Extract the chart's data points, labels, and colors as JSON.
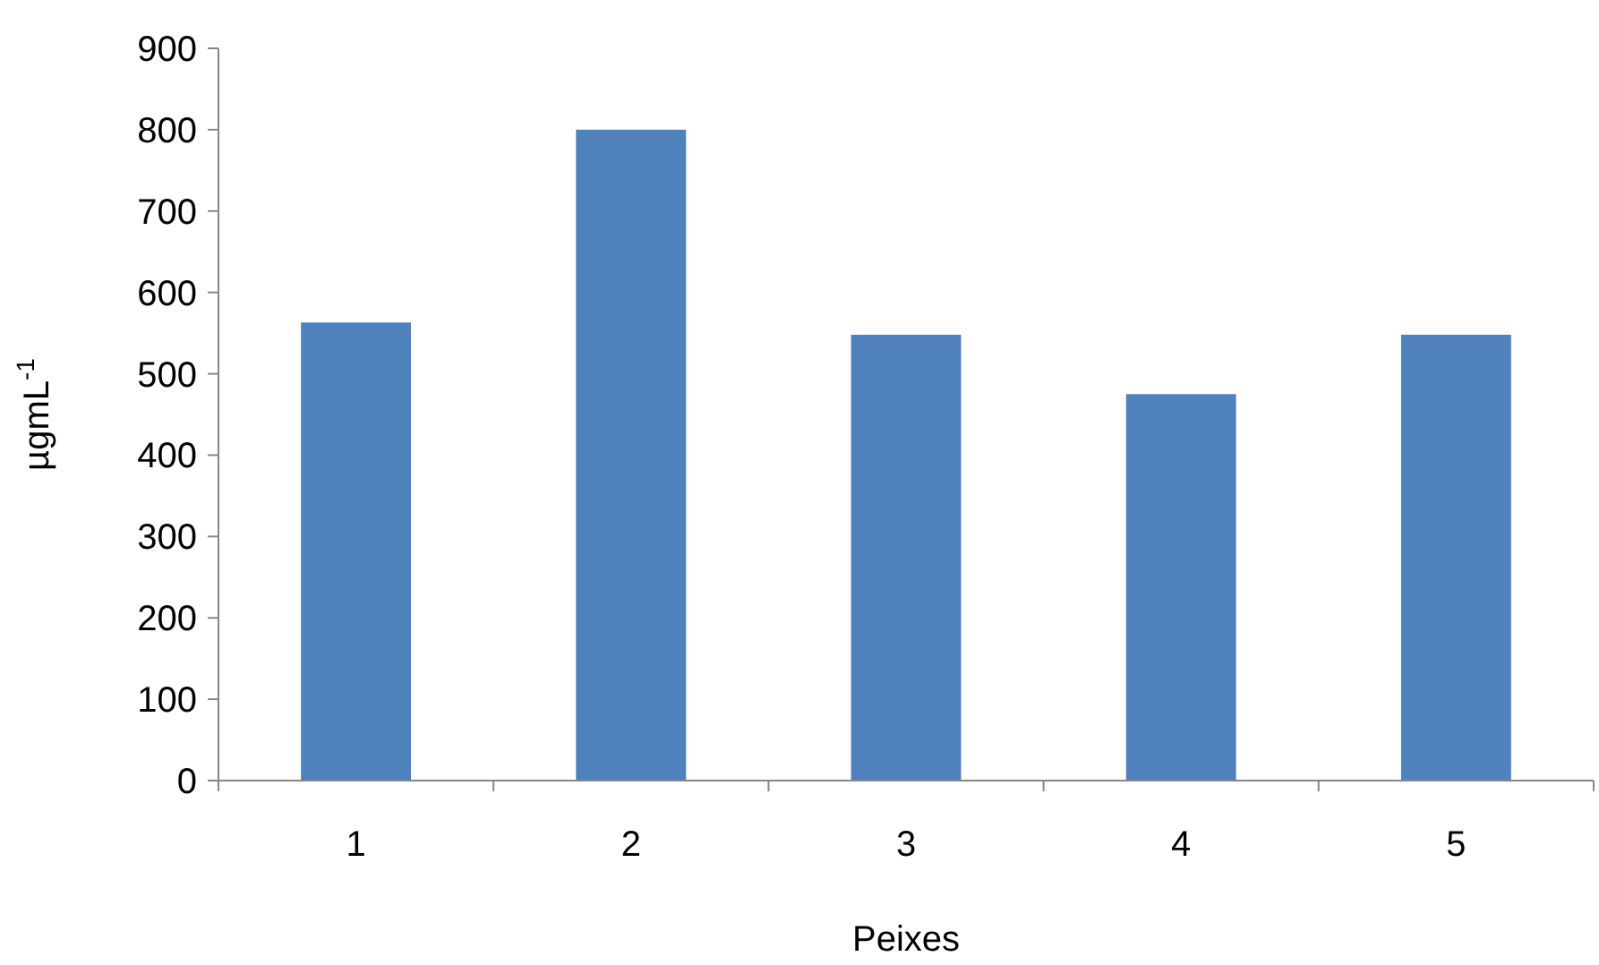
{
  "chart_data": {
    "type": "bar",
    "xlabel": "Peixes",
    "ylabel": "µgmL$^{-1}$",
    "categories": [
      "1",
      "2",
      "3",
      "4",
      "5"
    ],
    "values": [
      563,
      800,
      548,
      475,
      548
    ],
    "color": "#4f81bd",
    "ylim": [
      0,
      900
    ],
    "yticks": [
      0,
      100,
      200,
      300,
      400,
      500,
      600,
      700,
      800,
      900
    ],
    "grid": false
  }
}
